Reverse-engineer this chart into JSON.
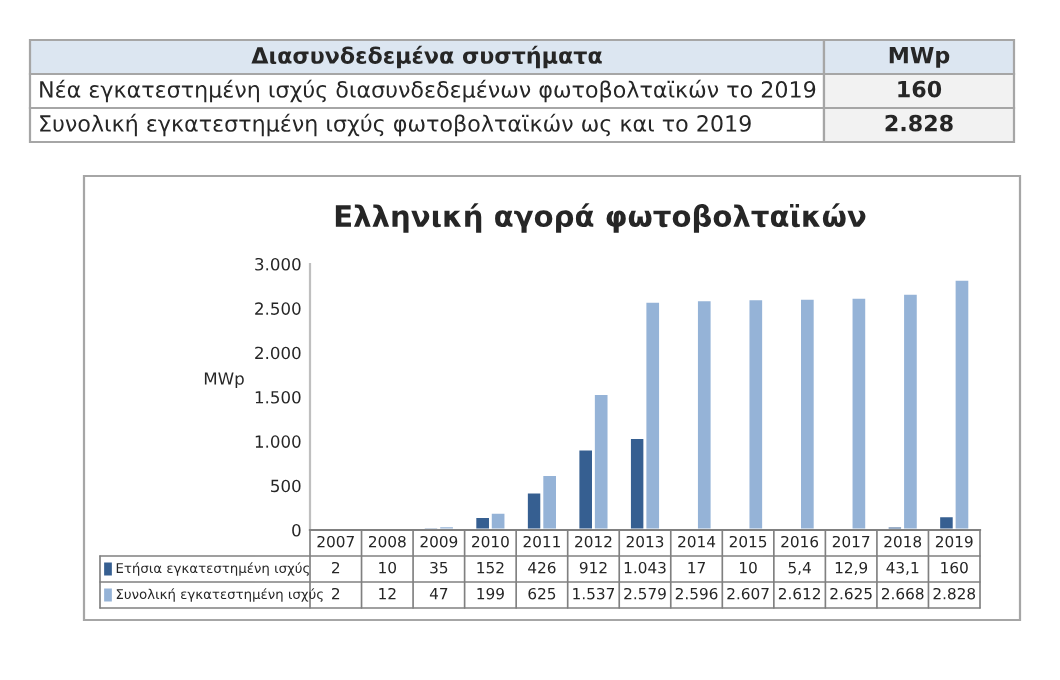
{
  "chart_data": {
    "type": "bar",
    "title": "Ελληνική αγορά φωτοβολταϊκών",
    "ylabel": "MWp",
    "categories": [
      "2007",
      "2008",
      "2009",
      "2010",
      "2011",
      "2012",
      "2013",
      "2014",
      "2015",
      "2016",
      "2017",
      "2018",
      "2019"
    ],
    "series": [
      {
        "name": "Ετήσια εγκατεστημένη ισχύς",
        "color": "#365f91",
        "values": [
          2,
          10,
          35,
          152,
          426,
          912,
          1043,
          17,
          10,
          5.4,
          12.9,
          43.1,
          160
        ],
        "value_labels": [
          "2",
          "10",
          "35",
          "152",
          "426",
          "912",
          "1.043",
          "17",
          "10",
          "5,4",
          "12,9",
          "43,1",
          "160"
        ]
      },
      {
        "name": "Συνολική εγκατεστημένη ισχύς",
        "color": "#95b3d7",
        "values": [
          2,
          12,
          47,
          199,
          625,
          1537,
          2579,
          2596,
          2607,
          2612,
          2625,
          2668,
          2828
        ],
        "value_labels": [
          "2",
          "12",
          "47",
          "199",
          "625",
          "1.537",
          "2.579",
          "2.596",
          "2.607",
          "2.612",
          "2.625",
          "2.668",
          "2.828"
        ]
      }
    ],
    "ylim": [
      0,
      3000
    ],
    "yticks": [
      {
        "value": 0,
        "label": "0"
      },
      {
        "value": 500,
        "label": "500"
      },
      {
        "value": 1000,
        "label": "1.000"
      },
      {
        "value": 1500,
        "label": "1.500"
      },
      {
        "value": 2000,
        "label": "2.000"
      },
      {
        "value": 2500,
        "label": "2.500"
      },
      {
        "value": 3000,
        "label": "3.000"
      }
    ],
    "legend": "bottom",
    "annotations": [
      "Διασυνδεδεμένα συστήματα",
      "MWp",
      "Νέα εγκατεστημένη ισχύς διασυνδεδεμένων φωτοβολταϊκών το 2019",
      "160",
      "Συνολική εγκατεστημένη ισχύς φωτοβολταϊκών ως και το 2019",
      "2.828"
    ]
  }
}
